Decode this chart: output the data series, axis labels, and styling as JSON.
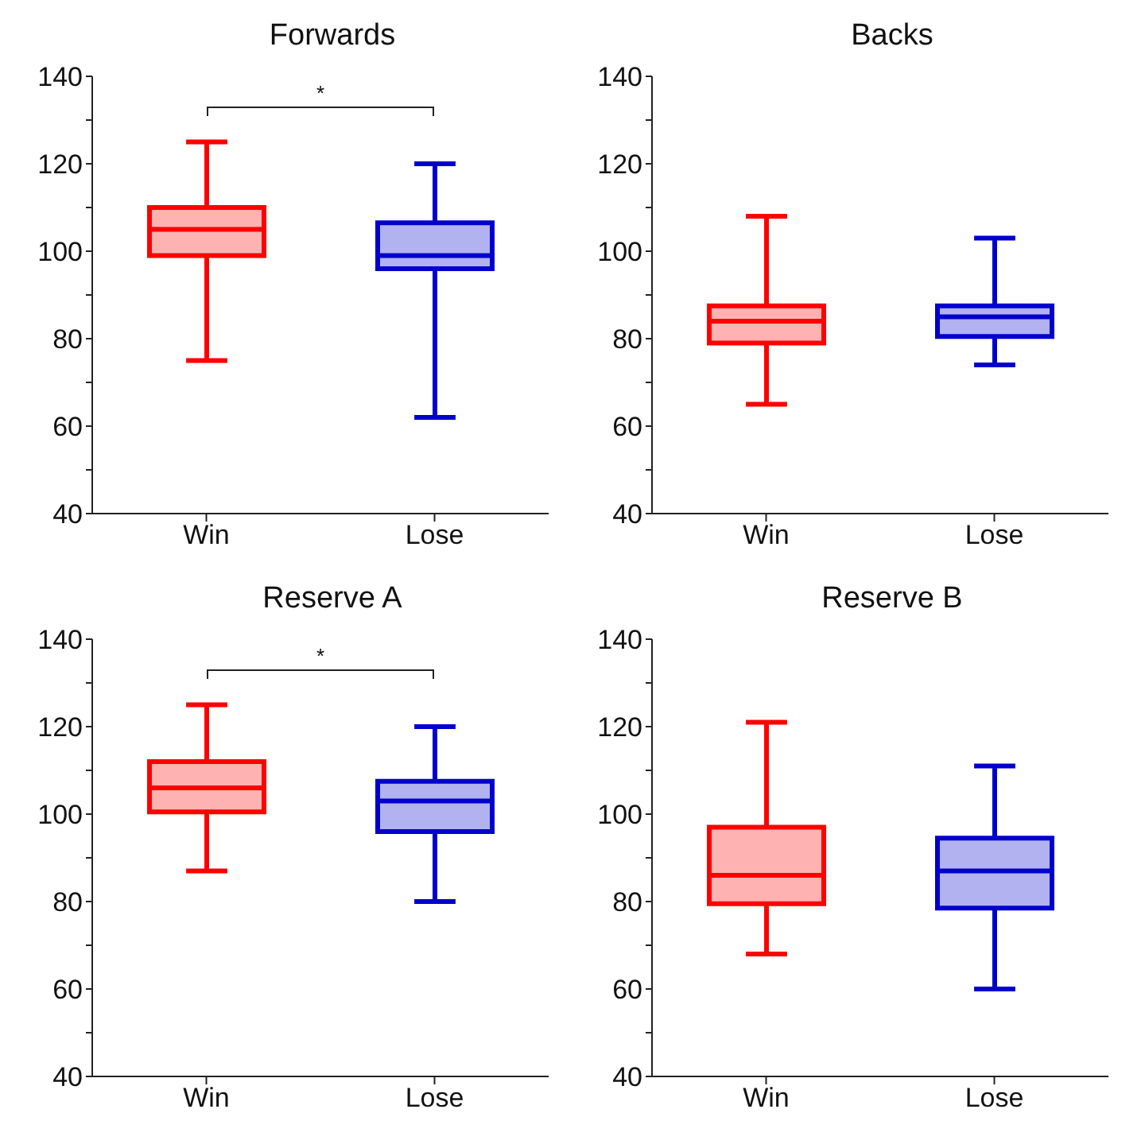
{
  "chart_data": [
    {
      "type": "box",
      "title": "Forwards",
      "categories": [
        "Win",
        "Lose"
      ],
      "colors": [
        "#ff0000",
        "#0000cc"
      ],
      "ylim": [
        40,
        140
      ],
      "yticks": [
        40,
        {
          "value": 50,
          "label": null
        },
        60,
        {
          "value": 70,
          "label": null
        },
        80,
        {
          "value": 90,
          "label": null
        },
        100,
        {
          "value": 110,
          "label": null
        },
        120,
        {
          "value": 130,
          "label": null
        },
        140
      ],
      "grid": false,
      "legend": false,
      "annotations": [
        "*"
      ],
      "boxes": [
        {
          "low": 75,
          "q1": 99,
          "median": 105,
          "q3": 110,
          "high": 125
        },
        {
          "low": 62,
          "q1": 96,
          "median": 99,
          "q3": 106.5,
          "high": 120
        }
      ]
    },
    {
      "type": "box",
      "title": "Backs",
      "categories": [
        "Win",
        "Lose"
      ],
      "colors": [
        "#ff0000",
        "#0000cc"
      ],
      "ylim": [
        40,
        140
      ],
      "yticks": [
        40,
        {
          "value": 50,
          "label": null
        },
        60,
        {
          "value": 70,
          "label": null
        },
        80,
        {
          "value": 90,
          "label": null
        },
        100,
        {
          "value": 110,
          "label": null
        },
        120,
        {
          "value": 130,
          "label": null
        },
        140
      ],
      "grid": false,
      "legend": false,
      "boxes": [
        {
          "low": 65,
          "q1": 79,
          "median": 84,
          "q3": 87.5,
          "high": 108
        },
        {
          "low": 74,
          "q1": 80.5,
          "median": 85,
          "q3": 87.5,
          "high": 103
        }
      ]
    },
    {
      "type": "box",
      "title": "Reserve A",
      "categories": [
        "Win",
        "Lose"
      ],
      "colors": [
        "#ff0000",
        "#0000cc"
      ],
      "ylim": [
        40,
        140
      ],
      "yticks": [
        40,
        {
          "value": 50,
          "label": null
        },
        60,
        {
          "value": 70,
          "label": null
        },
        80,
        {
          "value": 90,
          "label": null
        },
        100,
        {
          "value": 110,
          "label": null
        },
        120,
        {
          "value": 130,
          "label": null
        },
        140
      ],
      "grid": false,
      "legend": false,
      "annotations": [
        "*"
      ],
      "boxes": [
        {
          "low": 87,
          "q1": 100.5,
          "median": 106,
          "q3": 112,
          "high": 125
        },
        {
          "low": 80,
          "q1": 96,
          "median": 103,
          "q3": 107.5,
          "high": 120
        }
      ]
    },
    {
      "type": "box",
      "title": "Reserve B",
      "categories": [
        "Win",
        "Lose"
      ],
      "colors": [
        "#ff0000",
        "#0000cc"
      ],
      "ylim": [
        40,
        140
      ],
      "yticks": [
        40,
        {
          "value": 50,
          "label": null
        },
        60,
        {
          "value": 70,
          "label": null
        },
        80,
        {
          "value": 90,
          "label": null
        },
        100,
        {
          "value": 110,
          "label": null
        },
        120,
        {
          "value": 130,
          "label": null
        },
        140
      ],
      "grid": false,
      "legend": false,
      "boxes": [
        {
          "low": 68,
          "q1": 79.5,
          "median": 86,
          "q3": 97,
          "high": 121
        },
        {
          "low": 60,
          "q1": 78.5,
          "median": 87,
          "q3": 94.5,
          "high": 111
        }
      ]
    }
  ]
}
